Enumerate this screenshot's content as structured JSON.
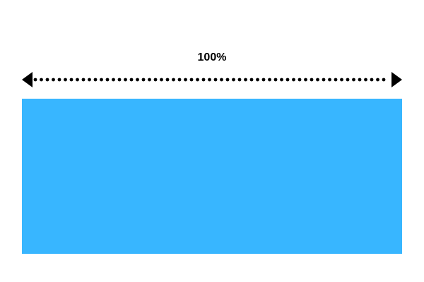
{
  "measure": {
    "label": "100%",
    "fraction": 1.0,
    "color": "#000000"
  },
  "box": {
    "color": "#38B6FF"
  }
}
